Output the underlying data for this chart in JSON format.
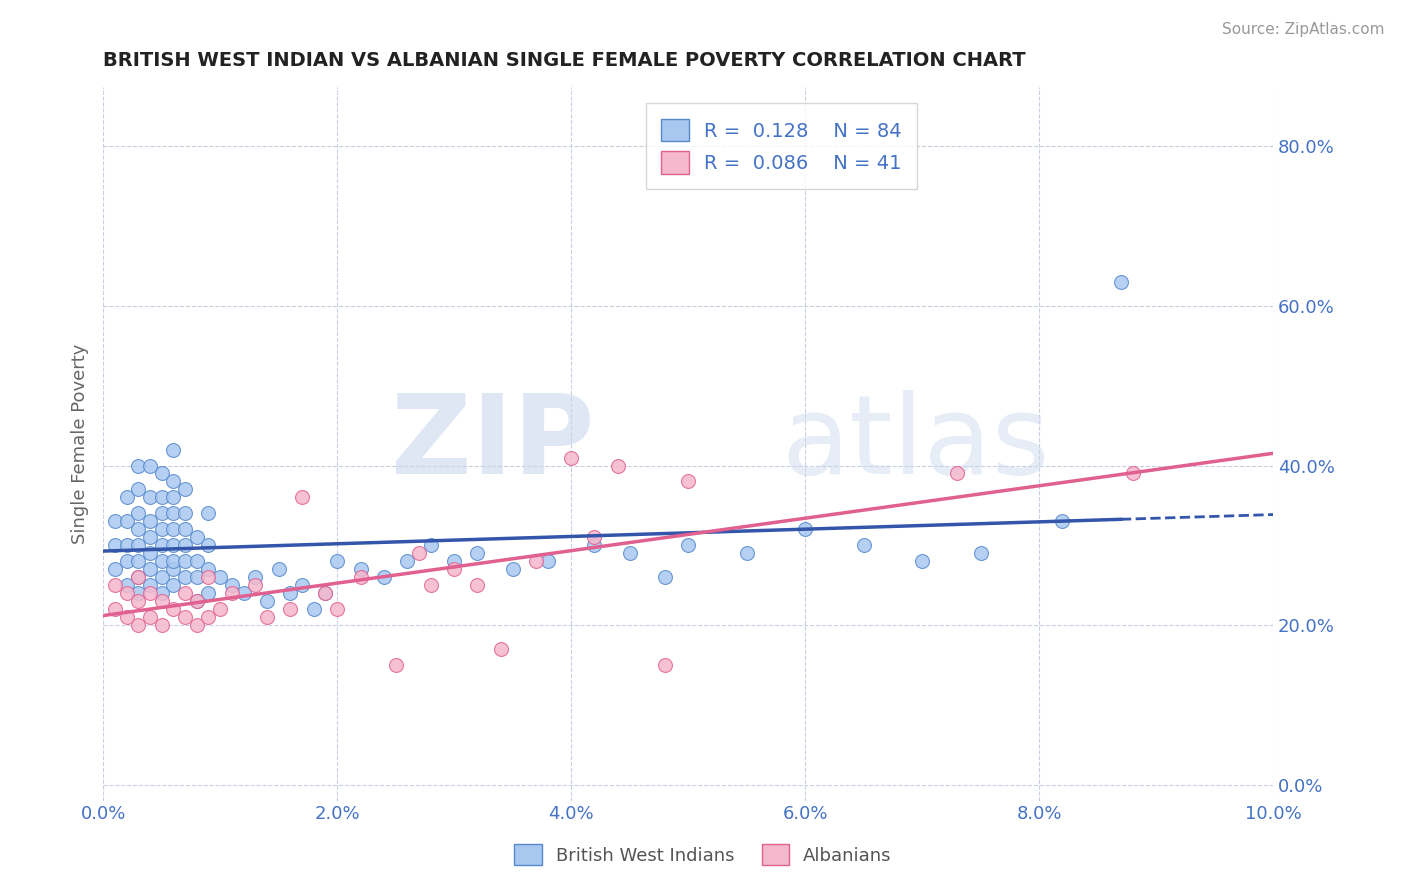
{
  "title": "BRITISH WEST INDIAN VS ALBANIAN SINGLE FEMALE POVERTY CORRELATION CHART",
  "source_text": "Source: ZipAtlas.com",
  "ylabel": "Single Female Poverty",
  "watermark_zip": "ZIP",
  "watermark_atlas": "atlas",
  "xlim": [
    0.0,
    0.1
  ],
  "ylim": [
    -0.02,
    0.875
  ],
  "xticks": [
    0.0,
    0.02,
    0.04,
    0.06,
    0.08,
    0.1
  ],
  "xtick_labels": [
    "0.0%",
    "2.0%",
    "4.0%",
    "6.0%",
    "8.0%",
    "10.0%"
  ],
  "yticks": [
    0.0,
    0.2,
    0.4,
    0.6,
    0.8
  ],
  "ytick_labels": [
    "0.0%",
    "20.0%",
    "40.0%",
    "60.0%",
    "80.0%"
  ],
  "bwi_color": "#a8c8f0",
  "alb_color": "#f5b8cc",
  "bwi_edge_color": "#5588cc",
  "alb_edge_color": "#e06090",
  "bwi_line_color": "#3355aa",
  "alb_line_color": "#e06090",
  "legend_label1": "British West Indians",
  "legend_label2": "Albanians",
  "title_color": "#222222",
  "axis_tick_color": "#4472c4",
  "background_color": "#ffffff",
  "plot_bg_color": "#ffffff",
  "grid_color": "#c8d0e0",
  "bwi_x": [
    0.001,
    0.001,
    0.001,
    0.002,
    0.002,
    0.002,
    0.002,
    0.002,
    0.003,
    0.003,
    0.003,
    0.003,
    0.003,
    0.003,
    0.003,
    0.003,
    0.004,
    0.004,
    0.004,
    0.004,
    0.004,
    0.004,
    0.004,
    0.005,
    0.005,
    0.005,
    0.005,
    0.005,
    0.005,
    0.005,
    0.005,
    0.006,
    0.006,
    0.006,
    0.006,
    0.006,
    0.006,
    0.006,
    0.006,
    0.006,
    0.007,
    0.007,
    0.007,
    0.007,
    0.007,
    0.007,
    0.008,
    0.008,
    0.008,
    0.008,
    0.009,
    0.009,
    0.009,
    0.009,
    0.01,
    0.011,
    0.012,
    0.013,
    0.014,
    0.015,
    0.016,
    0.017,
    0.018,
    0.019,
    0.02,
    0.022,
    0.024,
    0.026,
    0.028,
    0.03,
    0.032,
    0.035,
    0.038,
    0.042,
    0.045,
    0.048,
    0.05,
    0.055,
    0.06,
    0.065,
    0.07,
    0.075,
    0.082,
    0.087
  ],
  "bwi_y": [
    0.27,
    0.3,
    0.33,
    0.25,
    0.28,
    0.3,
    0.33,
    0.36,
    0.24,
    0.26,
    0.28,
    0.3,
    0.32,
    0.34,
    0.37,
    0.4,
    0.25,
    0.27,
    0.29,
    0.31,
    0.33,
    0.36,
    0.4,
    0.24,
    0.26,
    0.28,
    0.3,
    0.32,
    0.34,
    0.36,
    0.39,
    0.25,
    0.27,
    0.28,
    0.3,
    0.32,
    0.34,
    0.36,
    0.38,
    0.42,
    0.26,
    0.28,
    0.3,
    0.32,
    0.34,
    0.37,
    0.23,
    0.26,
    0.28,
    0.31,
    0.24,
    0.27,
    0.3,
    0.34,
    0.26,
    0.25,
    0.24,
    0.26,
    0.23,
    0.27,
    0.24,
    0.25,
    0.22,
    0.24,
    0.28,
    0.27,
    0.26,
    0.28,
    0.3,
    0.28,
    0.29,
    0.27,
    0.28,
    0.3,
    0.29,
    0.26,
    0.3,
    0.29,
    0.32,
    0.3,
    0.28,
    0.29,
    0.33,
    0.63
  ],
  "alb_x": [
    0.001,
    0.001,
    0.002,
    0.002,
    0.003,
    0.003,
    0.003,
    0.004,
    0.004,
    0.005,
    0.005,
    0.006,
    0.007,
    0.007,
    0.008,
    0.008,
    0.009,
    0.009,
    0.01,
    0.011,
    0.013,
    0.014,
    0.016,
    0.017,
    0.019,
    0.02,
    0.022,
    0.025,
    0.027,
    0.028,
    0.03,
    0.032,
    0.034,
    0.037,
    0.04,
    0.042,
    0.044,
    0.048,
    0.05,
    0.073,
    0.088
  ],
  "alb_y": [
    0.22,
    0.25,
    0.21,
    0.24,
    0.2,
    0.23,
    0.26,
    0.21,
    0.24,
    0.2,
    0.23,
    0.22,
    0.21,
    0.24,
    0.2,
    0.23,
    0.21,
    0.26,
    0.22,
    0.24,
    0.25,
    0.21,
    0.22,
    0.36,
    0.24,
    0.22,
    0.26,
    0.15,
    0.29,
    0.25,
    0.27,
    0.25,
    0.17,
    0.28,
    0.41,
    0.31,
    0.4,
    0.15,
    0.38,
    0.39,
    0.39
  ]
}
